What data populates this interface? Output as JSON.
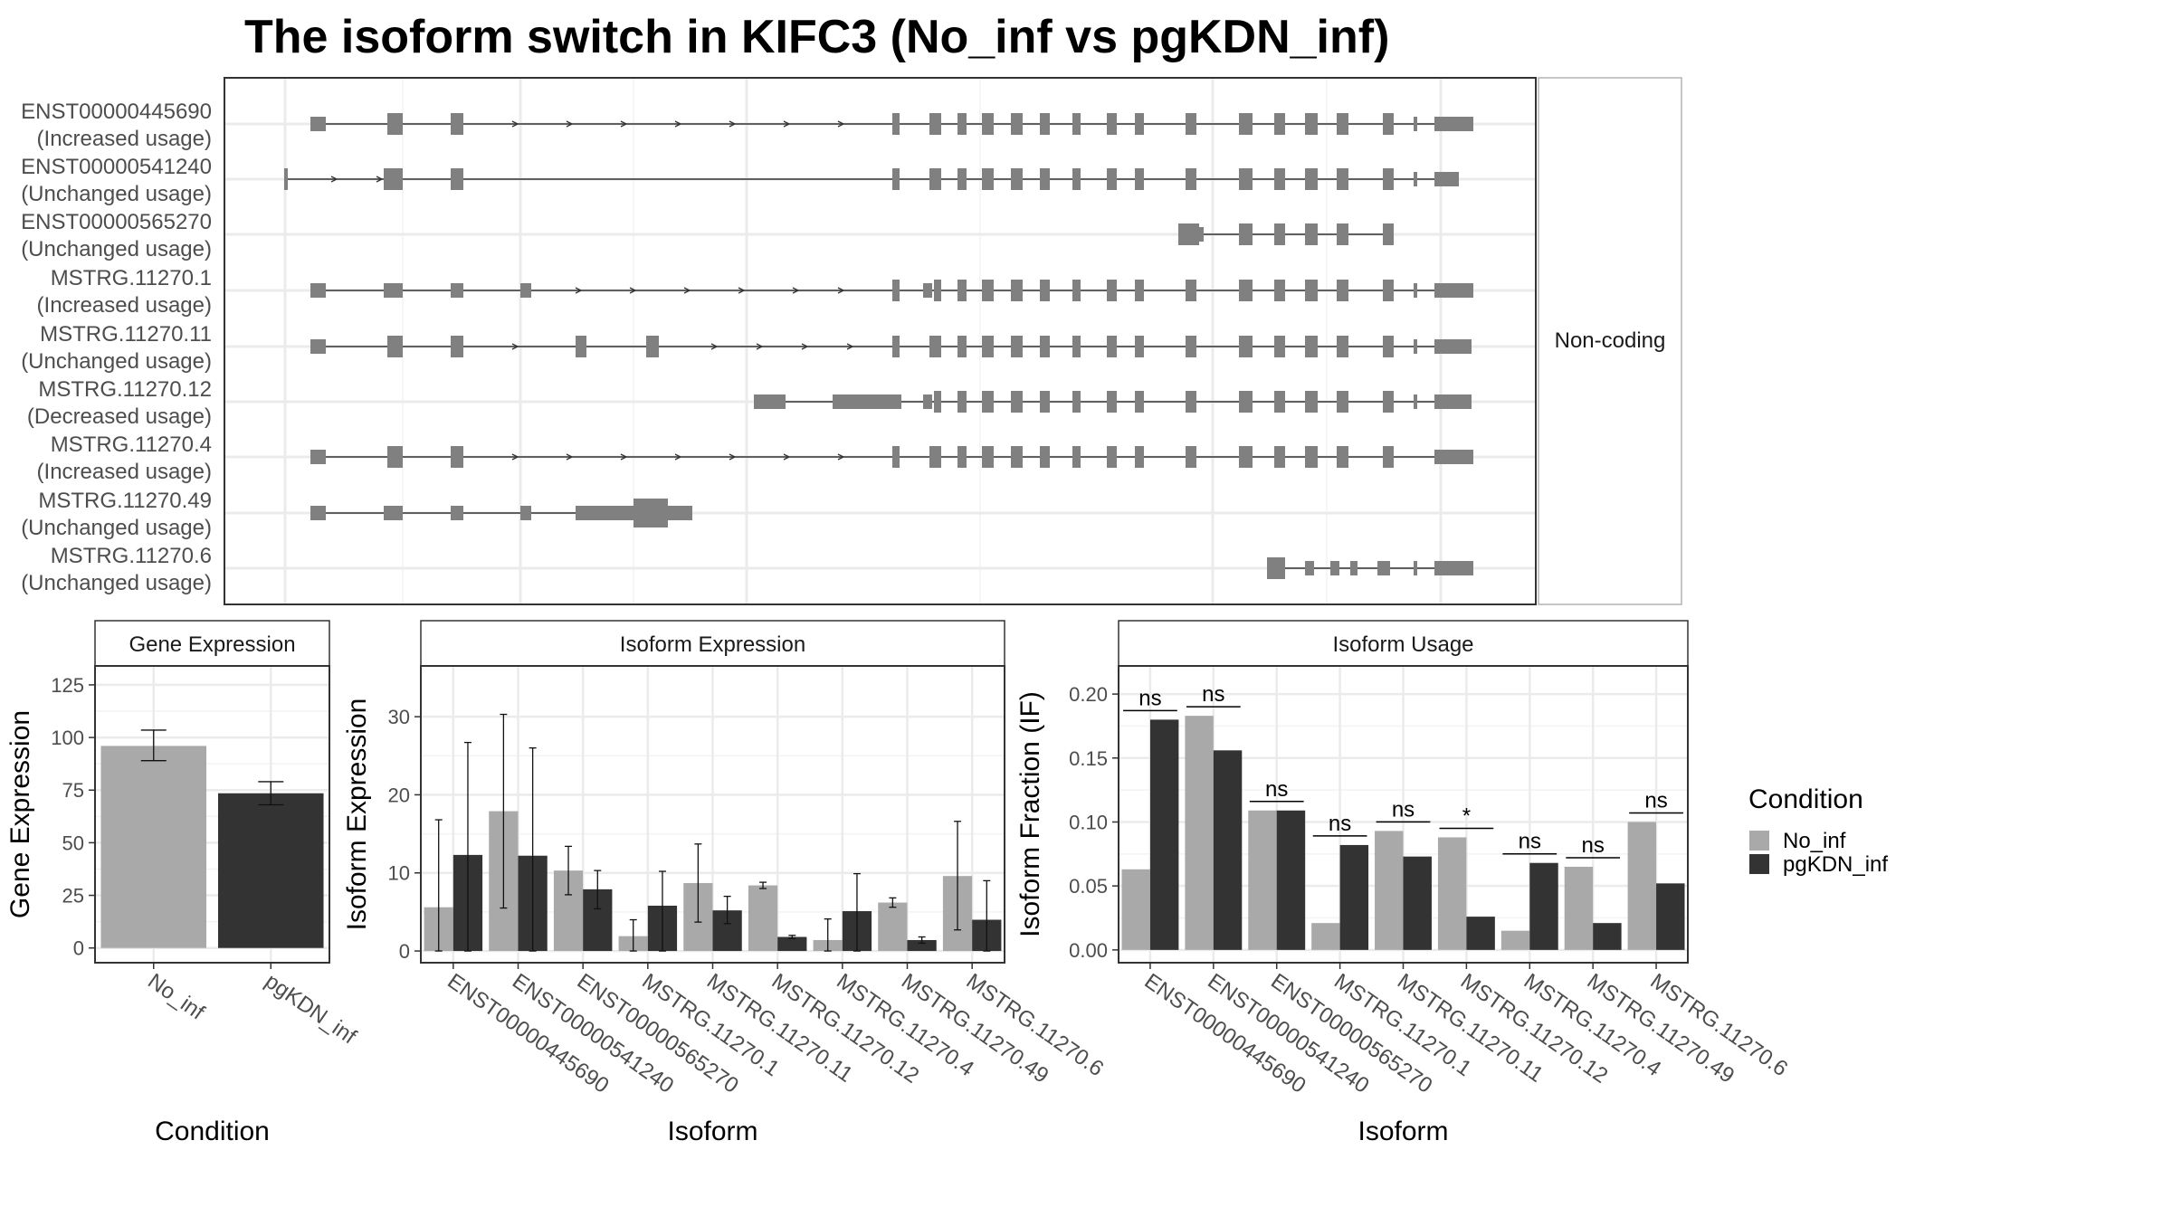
{
  "title": "The isoform switch in KIFC3 (No_inf vs pgKDN_inf)",
  "colors": {
    "No_inf": "#a9a9a9",
    "pgKDN_inf": "#333333",
    "exon": "#808080",
    "grid": "#ebebeb",
    "border": "#333333"
  },
  "structure": {
    "strip_label": "Non-coding",
    "isoforms": [
      {
        "id": "ENST00000445690",
        "status": "(Increased usage)"
      },
      {
        "id": "ENST00000541240",
        "status": "(Unchanged usage)"
      },
      {
        "id": "ENST00000565270",
        "status": "(Unchanged usage)"
      },
      {
        "id": "MSTRG.11270.1",
        "status": "(Increased usage)"
      },
      {
        "id": "MSTRG.11270.11",
        "status": "(Unchanged usage)"
      },
      {
        "id": "MSTRG.11270.12",
        "status": "(Decreased usage)"
      },
      {
        "id": "MSTRG.11270.4",
        "status": "(Increased usage)"
      },
      {
        "id": "MSTRG.11270.49",
        "status": "(Unchanged usage)"
      },
      {
        "id": "MSTRG.11270.6",
        "status": "(Unchanged usage)"
      }
    ]
  },
  "legend": {
    "title": "Condition",
    "items": [
      "No_inf",
      "pgKDN_inf"
    ]
  },
  "chart_data": [
    {
      "type": "bar",
      "title": "Gene Expression",
      "xlabel": "Condition",
      "ylabel": "Gene Expression",
      "categories": [
        "No_inf",
        "pgKDN_inf"
      ],
      "values": [
        96,
        73.5
      ],
      "err_low": [
        89,
        68
      ],
      "err_high": [
        103.5,
        79
      ],
      "ylim": [
        -7,
        134
      ],
      "yticks": [
        0,
        25,
        50,
        75,
        100,
        125
      ],
      "grid": true
    },
    {
      "type": "bar",
      "title": "Isoform Expression",
      "xlabel": "Isoform",
      "ylabel": "Isoform Expression",
      "categories": [
        "ENST00000445690",
        "ENST00000541240",
        "ENST00000565270",
        "MSTRG.11270.1",
        "MSTRG.11270.11",
        "MSTRG.11270.12",
        "MSTRG.11270.4",
        "MSTRG.11270.49",
        "MSTRG.11270.6"
      ],
      "series": [
        {
          "name": "No_inf",
          "values": [
            5.6,
            17.9,
            10.3,
            1.9,
            8.7,
            8.4,
            1.4,
            6.2,
            9.6
          ],
          "err_low": [
            0,
            5.5,
            7.2,
            0,
            3.7,
            8.0,
            0,
            5.6,
            2.7
          ],
          "err_high": [
            16.8,
            30.3,
            13.4,
            4.0,
            13.7,
            8.8,
            4.1,
            6.8,
            16.6
          ]
        },
        {
          "name": "pgKDN_inf",
          "values": [
            12.3,
            12.2,
            7.9,
            5.8,
            5.2,
            1.8,
            5.1,
            1.4,
            4.0
          ],
          "err_low": [
            0,
            0,
            5.4,
            0,
            3.5,
            1.6,
            0,
            1.0,
            0
          ],
          "err_high": [
            26.7,
            26.0,
            10.3,
            10.2,
            7.0,
            2.0,
            9.9,
            1.8,
            9.0
          ]
        }
      ],
      "ylim": [
        -1.5,
        36.5
      ],
      "yticks": [
        0,
        10,
        20,
        30
      ],
      "grid": true
    },
    {
      "type": "bar",
      "title": "Isoform Usage",
      "xlabel": "Isoform",
      "ylabel": "Isoform Fraction (IF)",
      "categories": [
        "ENST00000445690",
        "ENST00000541240",
        "ENST00000565270",
        "MSTRG.11270.1",
        "MSTRG.11270.11",
        "MSTRG.11270.12",
        "MSTRG.11270.4",
        "MSTRG.11270.49",
        "MSTRG.11270.6"
      ],
      "series": [
        {
          "name": "No_inf",
          "values": [
            0.063,
            0.183,
            0.109,
            0.021,
            0.093,
            0.088,
            0.015,
            0.065,
            0.1
          ]
        },
        {
          "name": "pgKDN_inf",
          "values": [
            0.18,
            0.156,
            0.109,
            0.082,
            0.073,
            0.026,
            0.068,
            0.021,
            0.052
          ]
        }
      ],
      "significance": [
        "ns",
        "ns",
        "ns",
        "ns",
        "ns",
        "*",
        "ns",
        "ns",
        "ns"
      ],
      "ylim": [
        -0.01,
        0.222
      ],
      "yticks": [
        0.0,
        0.05,
        0.1,
        0.15,
        0.2
      ],
      "ytick_labels": [
        "0.00",
        "0.05",
        "0.10",
        "0.15",
        "0.20"
      ],
      "grid": true
    }
  ]
}
